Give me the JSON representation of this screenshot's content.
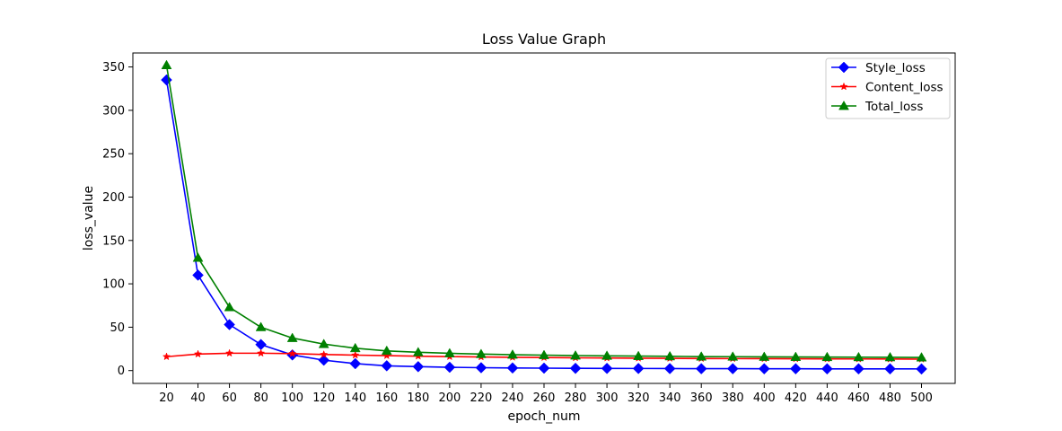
{
  "chart_data": {
    "type": "line",
    "title": "Loss Value Graph",
    "xlabel": "epoch_num",
    "ylabel": "loss_value",
    "x": [
      20,
      40,
      60,
      80,
      100,
      120,
      140,
      160,
      180,
      200,
      220,
      240,
      260,
      280,
      300,
      320,
      340,
      360,
      380,
      400,
      420,
      440,
      460,
      480,
      500
    ],
    "xlim": [
      -1.4,
      521.4
    ],
    "ylim": [
      -14.8,
      366.1
    ],
    "yticks": [
      0,
      50,
      100,
      150,
      200,
      250,
      300,
      350
    ],
    "grid": false,
    "legend_position": "top-right",
    "series": [
      {
        "name": "Style_loss",
        "color": "#0000ff",
        "marker": "diamond",
        "values": [
          335,
          110,
          53,
          30,
          18,
          12,
          8,
          5.5,
          4.5,
          3.8,
          3.3,
          3.0,
          2.8,
          2.6,
          2.5,
          2.4,
          2.3,
          2.2,
          2.2,
          2.1,
          2.1,
          2.0,
          2.0,
          2.0,
          1.9
        ]
      },
      {
        "name": "Content_loss",
        "color": "#ff0000",
        "marker": "star",
        "values": [
          16,
          19,
          20,
          20,
          19.5,
          18.5,
          17.8,
          17.2,
          16.6,
          16.1,
          15.7,
          15.3,
          15.0,
          14.7,
          14.5,
          14.3,
          14.1,
          13.9,
          13.8,
          13.7,
          13.6,
          13.5,
          13.4,
          13.3,
          13.2
        ]
      },
      {
        "name": "Total_loss",
        "color": "#008000",
        "marker": "triangle",
        "values": [
          352,
          130,
          73,
          50,
          37.5,
          30.5,
          25.8,
          22.7,
          21.1,
          19.9,
          19.0,
          18.3,
          17.8,
          17.3,
          17.0,
          16.7,
          16.4,
          16.1,
          16.0,
          15.8,
          15.7,
          15.5,
          15.4,
          15.3,
          15.1
        ]
      }
    ]
  }
}
